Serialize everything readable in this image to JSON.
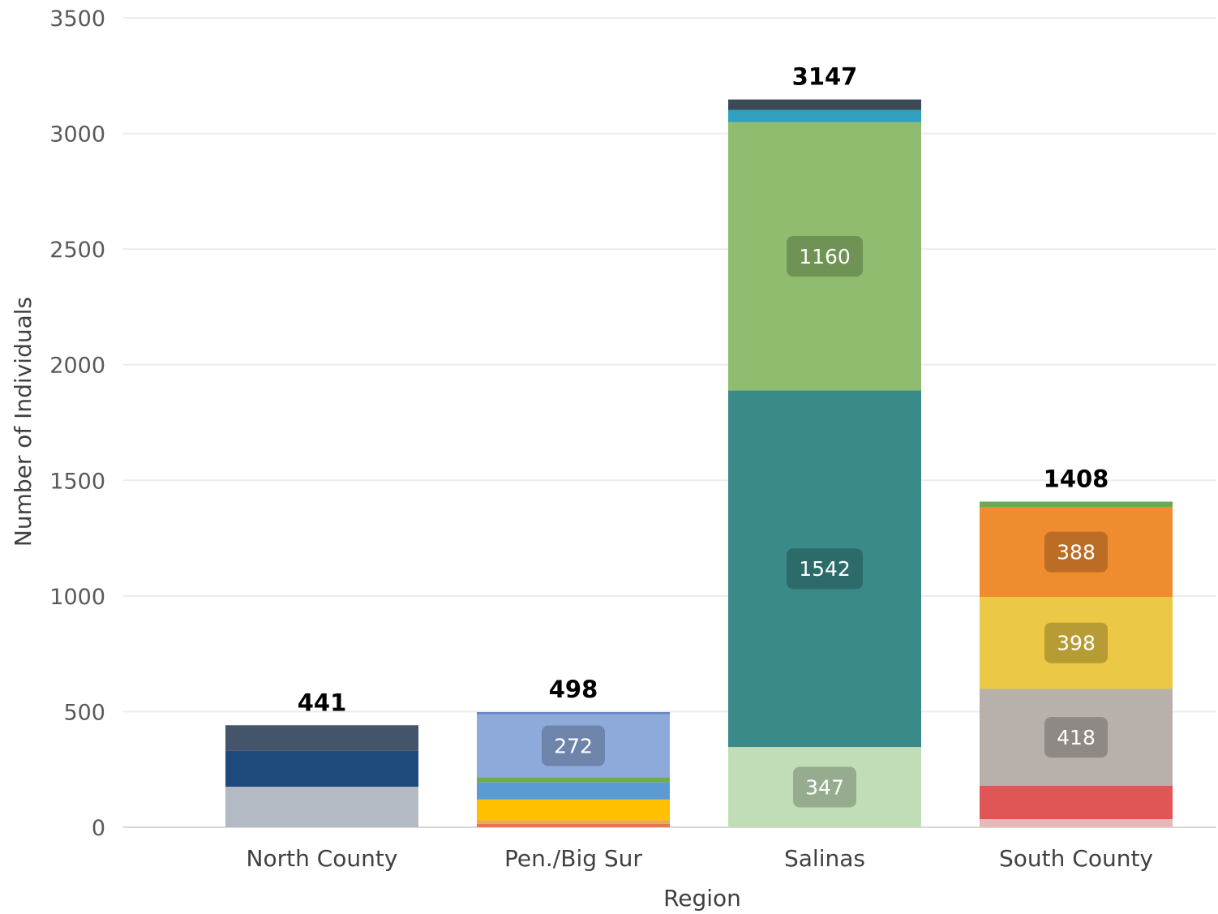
{
  "chart_data": {
    "type": "bar",
    "stacked": true,
    "xlabel": "Region",
    "ylabel": "Number of Individuals",
    "ylim": [
      0,
      3500
    ],
    "yticks": [
      0,
      500,
      1000,
      1500,
      2000,
      2500,
      3000,
      3500
    ],
    "grid": true,
    "categories": [
      "North County",
      "Pen./Big Sur",
      "Salinas",
      "South County"
    ],
    "totals": [
      441,
      498,
      3147,
      1408
    ],
    "stacks": [
      {
        "category": "North County",
        "segments": [
          {
            "value": 175,
            "color": "#b3bac3"
          },
          {
            "value": 155,
            "color": "#1f4a7c"
          },
          {
            "value": 111,
            "color": "#44546a"
          }
        ]
      },
      {
        "category": "Pen./Big Sur",
        "segments": [
          {
            "value": 15,
            "color": "#e07a4a"
          },
          {
            "value": 15,
            "color": "#f0a458"
          },
          {
            "value": 90,
            "color": "#ffc000"
          },
          {
            "value": 75,
            "color": "#5b9bd5"
          },
          {
            "value": 21,
            "color": "#70ad47"
          },
          {
            "value": 272,
            "color": "#8eaadb",
            "label": "272"
          },
          {
            "value": 10,
            "color": "#6a86c2"
          }
        ]
      },
      {
        "category": "Salinas",
        "segments": [
          {
            "value": 347,
            "color": "#c0ddb8",
            "label": "347"
          },
          {
            "value": 1542,
            "color": "#3a8a8a",
            "label": "1542"
          },
          {
            "value": 1160,
            "color": "#8fbc6e",
            "label": "1160"
          },
          {
            "value": 53,
            "color": "#31a0c0"
          },
          {
            "value": 45,
            "color": "#3b4a55"
          }
        ]
      },
      {
        "category": "South County",
        "segments": [
          {
            "value": 35,
            "color": "#e6b8b8"
          },
          {
            "value": 145,
            "color": "#e05555"
          },
          {
            "value": 418,
            "color": "#b8b0ab",
            "label": "418"
          },
          {
            "value": 398,
            "color": "#ebc845",
            "label": "398"
          },
          {
            "value": 388,
            "color": "#f08c30",
            "label": "388"
          },
          {
            "value": 24,
            "color": "#6aaa50"
          }
        ]
      }
    ]
  }
}
